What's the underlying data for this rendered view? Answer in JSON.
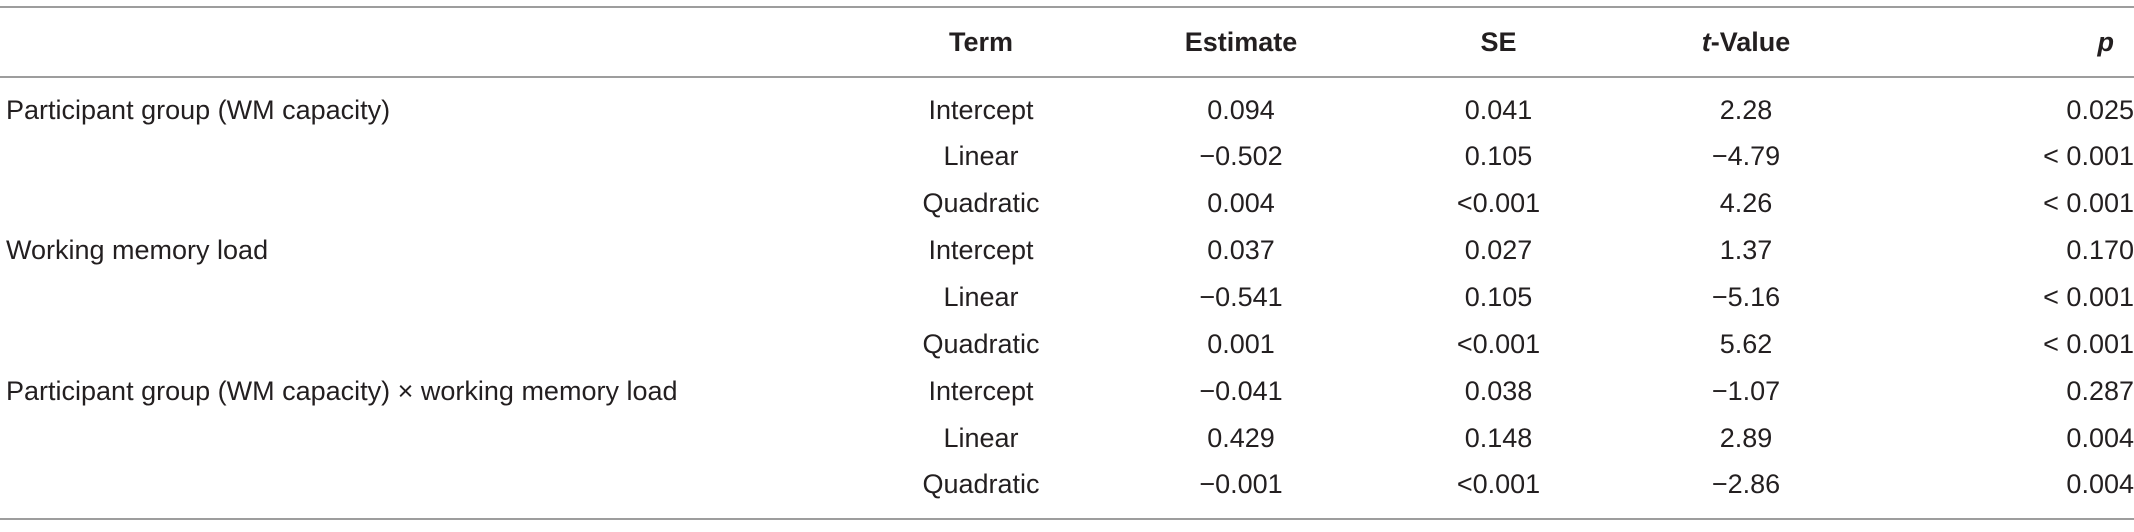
{
  "table": {
    "headers": {
      "effect": "",
      "term": "Term",
      "estimate": "Estimate",
      "se": "SE",
      "t_value_italic": "t",
      "t_value_rest": "-Value",
      "p": "p"
    },
    "rows": [
      {
        "effect": "Participant group (WM capacity)",
        "term": "Intercept",
        "estimate": "0.094",
        "se": "0.041",
        "t": "2.28",
        "p": "0.025"
      },
      {
        "effect": "",
        "term": "Linear",
        "estimate": "−0.502",
        "se": "0.105",
        "t": "−4.79",
        "p": "< 0.001"
      },
      {
        "effect": "",
        "term": "Quadratic",
        "estimate": "0.004",
        "se": "<0.001",
        "t": "4.26",
        "p": "< 0.001"
      },
      {
        "effect": "Working memory load",
        "term": "Intercept",
        "estimate": "0.037",
        "se": "0.027",
        "t": "1.37",
        "p": "0.170"
      },
      {
        "effect": "",
        "term": "Linear",
        "estimate": "−0.541",
        "se": "0.105",
        "t": "−5.16",
        "p": "< 0.001"
      },
      {
        "effect": "",
        "term": "Quadratic",
        "estimate": "0.001",
        "se": "<0.001",
        "t": "5.62",
        "p": "< 0.001"
      },
      {
        "effect": "Participant group (WM capacity) × working memory load",
        "term": "Intercept",
        "estimate": "−0.041",
        "se": "0.038",
        "t": "−1.07",
        "p": "0.287"
      },
      {
        "effect": "",
        "term": "Linear",
        "estimate": "0.429",
        "se": "0.148",
        "t": "2.89",
        "p": "0.004"
      },
      {
        "effect": "",
        "term": "Quadratic",
        "estimate": "−0.001",
        "se": "<0.001",
        "t": "−2.86",
        "p": "0.004"
      }
    ]
  }
}
